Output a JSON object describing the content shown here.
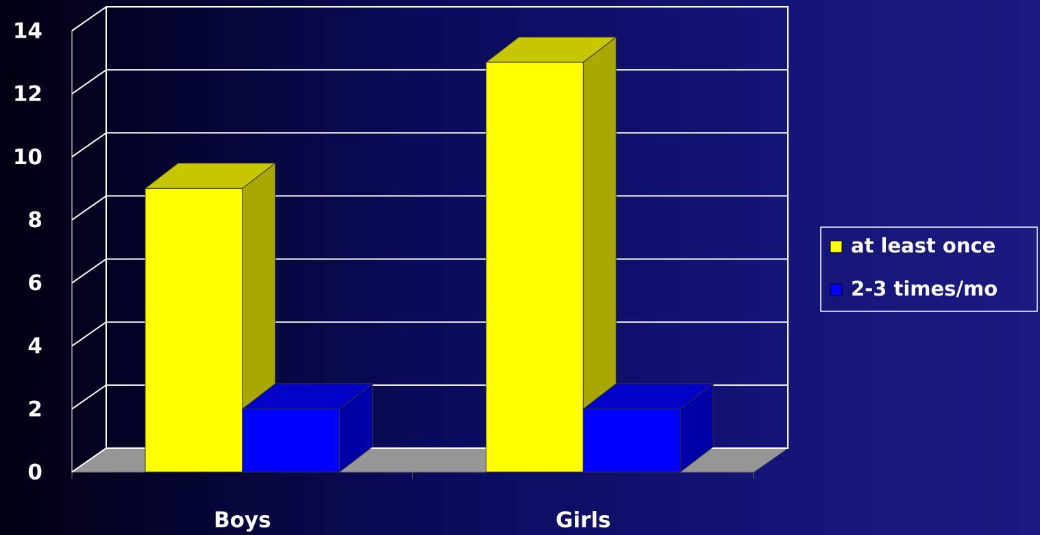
{
  "chart_data": {
    "type": "bar3d",
    "categories": [
      "Boys",
      "Girls"
    ],
    "series": [
      {
        "name": "at least once",
        "color": "#ffff00",
        "values": [
          9,
          13
        ]
      },
      {
        "name": "2-3 times/mo",
        "color": "#0000ff",
        "values": [
          2,
          2
        ]
      }
    ],
    "ylim": [
      0,
      14
    ],
    "yticks": [
      0,
      2,
      4,
      6,
      8,
      10,
      12,
      14
    ],
    "grid": true,
    "legend": "right"
  }
}
